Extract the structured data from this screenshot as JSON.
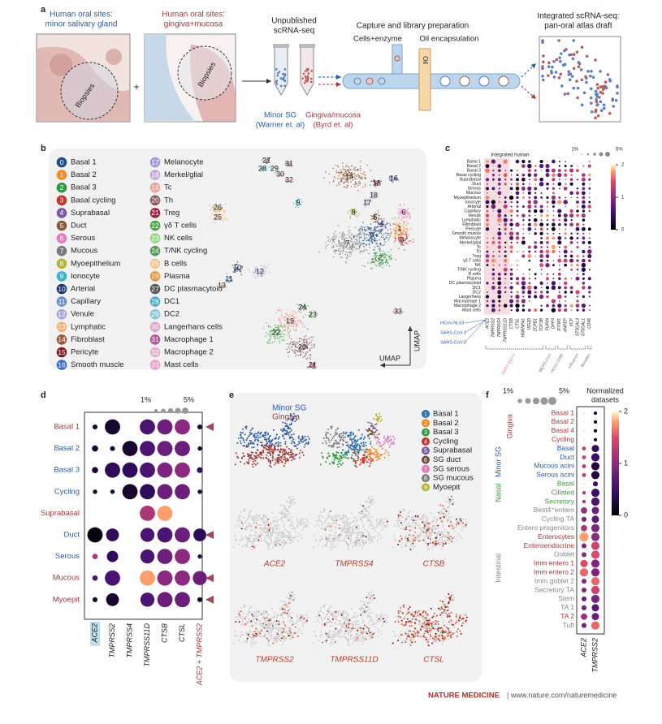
{
  "panel_a": {
    "label": "a",
    "minor_sg_title": [
      "Human oral sites:",
      "minor salivary gland"
    ],
    "gingiva_title": [
      "Human oral sites:",
      "gingiva+mucosa"
    ],
    "biopsies": [
      "Biopsies",
      "Biopsies"
    ],
    "plus": "+",
    "unpublished": [
      "Unpublished",
      "scRNA-seq"
    ],
    "minor_sg_source": [
      "Minor SG",
      "(Warner et. al)"
    ],
    "gingiva_source": [
      "Gingiva/mucosa",
      "(Byrd et. al)"
    ],
    "capture": "Capture and library preparation",
    "cells": "Cells+enzyme",
    "oil_encapsulation": "Oil encapsulation",
    "oil": "Oil",
    "integrated": [
      "Integrated scRNA-seq:",
      "pan-oral atlas draft"
    ]
  },
  "panel_b": {
    "label": "b",
    "umap": [
      "UMAP",
      "UMAP"
    ],
    "clusters": [
      {
        "id": 0,
        "name": "Basal 1",
        "color": "#1f4e8c"
      },
      {
        "id": 1,
        "name": "Basal 2",
        "color": "#f08a24"
      },
      {
        "id": 2,
        "name": "Basal 3",
        "color": "#2e9a3e"
      },
      {
        "id": 3,
        "name": "Basal cycling",
        "color": "#c8322b"
      },
      {
        "id": 4,
        "name": "Suprabasal",
        "color": "#7d5aa6"
      },
      {
        "id": 5,
        "name": "Duct",
        "color": "#8b5a3c"
      },
      {
        "id": 6,
        "name": "Serous",
        "color": "#e37bbd"
      },
      {
        "id": 7,
        "name": "Mucous",
        "color": "#7a7a7a"
      },
      {
        "id": 8,
        "name": "Myoepithelium",
        "color": "#b5b532"
      },
      {
        "id": 9,
        "name": "Ionocyte",
        "color": "#3ab6c8"
      },
      {
        "id": 10,
        "name": "Arterial",
        "color": "#1a3a6e"
      },
      {
        "id": 11,
        "name": "Capillary",
        "color": "#6b8fc8"
      },
      {
        "id": 12,
        "name": "Venule",
        "color": "#a8a8d8"
      },
      {
        "id": 13,
        "name": "Lymphatic",
        "color": "#f2b278"
      },
      {
        "id": 14,
        "name": "Fibroblast",
        "color": "#9a5a3a"
      },
      {
        "id": 15,
        "name": "Pericyte",
        "color": "#7a1f2a"
      },
      {
        "id": 16,
        "name": "Smooth muscle",
        "color": "#3a6ec8"
      },
      {
        "id": 17,
        "name": "Melanocyte",
        "color": "#a89ad8"
      },
      {
        "id": 18,
        "name": "Merkel/glial",
        "color": "#c8a8d8"
      },
      {
        "id": 19,
        "name": "Tc",
        "color": "#f0a098"
      },
      {
        "id": 20,
        "name": "Th",
        "color": "#8a5a5a"
      },
      {
        "id": 21,
        "name": "Treg",
        "color": "#a0283c"
      },
      {
        "id": 22,
        "name": "γδ T cells",
        "color": "#4aa84a"
      },
      {
        "id": 23,
        "name": "NK cells",
        "color": "#9ad88a"
      },
      {
        "id": 24,
        "name": "T/NK cycling",
        "color": "#5a9a5a"
      },
      {
        "id": 25,
        "name": "B cells",
        "color": "#f5c48a"
      },
      {
        "id": 26,
        "name": "Plasma",
        "color": "#e89a3a"
      },
      {
        "id": 27,
        "name": "DC plasmacytoid",
        "color": "#5a5a5a"
      },
      {
        "id": 28,
        "name": "DC1",
        "color": "#4ab0c8"
      },
      {
        "id": 29,
        "name": "DC2",
        "color": "#8ac8d8"
      },
      {
        "id": 30,
        "name": "Langerhans cells",
        "color": "#d8a8c8"
      },
      {
        "id": 31,
        "name": "Macrophage 1",
        "color": "#b05a9a"
      },
      {
        "id": 32,
        "name": "Macrophage 2",
        "color": "#e8b0d0"
      },
      {
        "id": 33,
        "name": "Mast cells",
        "color": "#f0a0c8"
      }
    ]
  },
  "panel_c": {
    "label": "c",
    "title": "Integrated human",
    "size_legend": [
      "1%",
      "5%"
    ],
    "colorbar_ticks": [
      0,
      1,
      2
    ],
    "rows": [
      "Basal 1",
      "Basal 2",
      "Basal 3",
      "Basal cycling",
      "Suprabasal",
      "Duct",
      "Serous",
      "Mucous",
      "Myoepithelium",
      "Ionocyte",
      "Arterial",
      "Capillary",
      "Venule",
      "Lymphatic",
      "Fibroblast",
      "Pericyte",
      "Smooth muscle",
      "Melanocyte",
      "Merkel/glial",
      "Tc",
      "Th",
      "Treg",
      "γδ T cells",
      "NK",
      "T/NK cycling",
      "B cells",
      "Plasma",
      "DC plasmacytoid",
      "DC1",
      "DC2",
      "Langerhans",
      "Macrophage 1",
      "Macrophage 2",
      "Mast cells"
    ],
    "genes": [
      "ACE2",
      "TMPRSS2",
      "TMPRSS4",
      "TMPRSS11D",
      "CTSB",
      "CTSL",
      "HNRNPA1",
      "ISG20",
      "ZCRB1",
      "TOP3B",
      "FURIN",
      "DPP4",
      "IFITM1",
      "ANPEP",
      "VCP",
      "ST3GAL4",
      "ST6GAL1",
      "CD46"
    ],
    "receptor_labels": [
      "HCoV-NL63",
      "SARS-CoV-1",
      "SARS-CoV-2"
    ],
    "virus_groups": [
      {
        "name": "SARS-CoV-2",
        "color": "#d47a8a"
      },
      {
        "name": "MERS-CoV",
        "color": "#777777"
      },
      {
        "name": "HCoV-229E",
        "color": "#777777"
      },
      {
        "name": "Influenza",
        "color": "#777777"
      },
      {
        "name": "Measles",
        "color": "#777777"
      }
    ]
  },
  "panel_d": {
    "label": "d",
    "size_legend": [
      "1%",
      "5%"
    ],
    "columns": [
      "ACE2",
      "TMPRSS2",
      "TMPRSS4",
      "TMPRSS11D",
      "CTSB",
      "CTSL",
      "ACE2 + TMPRSS2"
    ],
    "rows": [
      {
        "name": "Basal 1",
        "color": "#a33a3a",
        "pct": [
          0.3,
          6,
          0,
          6,
          6,
          6,
          0.3
        ],
        "expr": [
          0.1,
          0.1,
          0,
          0.3,
          0.4,
          0.5,
          0.1
        ]
      },
      {
        "name": "Basal 2",
        "color": "#2a5aa8",
        "pct": [
          0.6,
          0.3,
          6,
          6,
          6,
          6,
          0.2
        ],
        "expr": [
          0.1,
          0.1,
          0.1,
          0.3,
          0.4,
          0.4,
          0.1
        ]
      },
      {
        "name": "Basal 3",
        "color": "#2a5aa8",
        "pct": [
          0.6,
          6,
          6,
          6,
          6,
          6,
          0.5
        ],
        "expr": [
          0.1,
          0.2,
          0.2,
          0.3,
          0.45,
          0.5,
          0.2
        ]
      },
      {
        "name": "Cycling",
        "color": "#2a5aa8",
        "pct": [
          0.2,
          0.2,
          6,
          6,
          6,
          6,
          0.2
        ],
        "expr": [
          0.1,
          0.1,
          0.1,
          0.2,
          0.4,
          0.4,
          0.1
        ]
      },
      {
        "name": "Suprabasal",
        "color": "#a33a3a",
        "pct": [
          0,
          0,
          0,
          6,
          6,
          0,
          0
        ],
        "expr": [
          0,
          0,
          0,
          0.6,
          0.9,
          0,
          0
        ]
      },
      {
        "name": "Duct",
        "color": "#2a5aa8",
        "pct": [
          6,
          4,
          0,
          5,
          6,
          6,
          4
        ],
        "expr": [
          0.02,
          0.2,
          0,
          0.3,
          0.3,
          0.4,
          0.2
        ]
      },
      {
        "name": "Serous",
        "color": "#2a5aa8",
        "pct": [
          0.4,
          3,
          0,
          5,
          6,
          6,
          0.2
        ],
        "expr": [
          0.6,
          0.2,
          0,
          0.3,
          0.4,
          0.5,
          0.2
        ]
      },
      {
        "name": "Mucous",
        "color": "#a33a3a",
        "pct": [
          0.4,
          6,
          0,
          6,
          6,
          6,
          5
        ],
        "expr": [
          0.3,
          0.3,
          0,
          0.9,
          0.5,
          0.5,
          0.4
        ]
      },
      {
        "name": "Myoepit",
        "color": "#a33a3a",
        "pct": [
          0.3,
          4,
          0,
          5,
          6,
          6,
          0.3
        ],
        "expr": [
          0.1,
          0.1,
          0,
          0.3,
          0.4,
          0.4,
          0.1
        ]
      }
    ]
  },
  "panel_e": {
    "label": "e",
    "overlay_legend": [
      {
        "name": "Minor SG",
        "color": "#2a5aa8"
      },
      {
        "name": "Gingiva",
        "color": "#a33a3a"
      }
    ],
    "clusters": [
      {
        "id": 1,
        "name": "Basal 1",
        "color": "#2a6fb5"
      },
      {
        "id": 2,
        "name": "Basal 2",
        "color": "#f08a24"
      },
      {
        "id": 3,
        "name": "Basal 3",
        "color": "#2e9a3e"
      },
      {
        "id": 4,
        "name": "Cycling",
        "color": "#c8322b"
      },
      {
        "id": 5,
        "name": "Suprabasal",
        "color": "#7d5aa6"
      },
      {
        "id": 6,
        "name": "SG duct",
        "color": "#6a4a3a"
      },
      {
        "id": 7,
        "name": "SG serous",
        "color": "#e37bbd"
      },
      {
        "id": 8,
        "name": "SG mucous",
        "color": "#7a7a7a"
      },
      {
        "id": 9,
        "name": "Myoepit",
        "color": "#b5b532"
      }
    ],
    "genes": [
      "ACE2",
      "TMPRSS4",
      "CTSB",
      "TMPRSS2",
      "TMPRSS11D",
      "CTSL"
    ]
  },
  "panel_f": {
    "label": "f",
    "size_legend": [
      "1%",
      "5%"
    ],
    "colorbar_title": [
      "Normalized",
      "datasets"
    ],
    "colorbar_ticks": [
      0,
      1,
      2
    ],
    "columns": [
      "ACE2",
      "TMPRSS2"
    ],
    "groups": [
      {
        "name": "Gingiva",
        "color": "#a33a3a",
        "rows": [
          {
            "name": "Basal 1",
            "color": "#a33a3a",
            "pct": [
              0,
              0.3
            ],
            "expr": [
              0,
              0.2
            ]
          },
          {
            "name": "Basal 2",
            "color": "#a33a3a",
            "pct": [
              0,
              0.3
            ],
            "expr": [
              0,
              0.2
            ]
          },
          {
            "name": "Basal 4",
            "color": "#a33a3a",
            "pct": [
              0,
              0.3
            ],
            "expr": [
              0,
              0.2
            ]
          },
          {
            "name": "Cycling",
            "color": "#a33a3a",
            "pct": [
              0,
              0.3
            ],
            "expr": [
              0,
              0.2
            ]
          }
        ]
      },
      {
        "name": "Minor SG",
        "color": "#2a5aa8",
        "rows": [
          {
            "name": "Basal",
            "color": "#2a5aa8",
            "pct": [
              0.5,
              3
            ],
            "expr": [
              1.4,
              0.4
            ]
          },
          {
            "name": "Duct",
            "color": "#2a5aa8",
            "pct": [
              0.5,
              4
            ],
            "expr": [
              1.4,
              0.5
            ]
          },
          {
            "name": "Mucous acini",
            "color": "#2a5aa8",
            "pct": [
              0.5,
              4
            ],
            "expr": [
              1.3,
              0.3
            ]
          },
          {
            "name": "Serous acini",
            "color": "#2a5aa8",
            "pct": [
              0.5,
              4
            ],
            "expr": [
              1.3,
              0.3
            ]
          }
        ]
      },
      {
        "name": "Nasal",
        "color": "#3a9a3a",
        "rows": [
          {
            "name": "Basal",
            "color": "#3a9a3a",
            "pct": [
              0,
              1
            ],
            "expr": [
              0,
              0.5
            ]
          },
          {
            "name": "Ciliated",
            "color": "#3a9a3a",
            "pct": [
              0.3,
              4
            ],
            "expr": [
              1.2,
              0.5
            ]
          },
          {
            "name": "Secretory",
            "color": "#3a9a3a",
            "pct": [
              0.3,
              4
            ],
            "expr": [
              1.2,
              0.6
            ]
          }
        ]
      },
      {
        "name": "Intestinal",
        "color": "#888888",
        "rows": [
          {
            "name": "Best4⁺entero",
            "color": "#888888",
            "pct": [
              2,
              3
            ],
            "expr": [
              1.1,
              0.8
            ]
          },
          {
            "name": "Cycling TA",
            "color": "#888888",
            "pct": [
              1,
              3
            ],
            "expr": [
              0.9,
              0.7
            ]
          },
          {
            "name": "Entero progenitors",
            "color": "#888888",
            "pct": [
              2,
              4
            ],
            "expr": [
              1.2,
              0.9
            ]
          },
          {
            "name": "Enterocytes",
            "color": "#a33a3a",
            "pct": [
              5,
              4
            ],
            "expr": [
              1.8,
              1.0
            ]
          },
          {
            "name": "Enteroendocrine",
            "color": "#a33a3a",
            "pct": [
              1,
              4
            ],
            "expr": [
              0.9,
              1.4
            ]
          },
          {
            "name": "Goblet",
            "color": "#888888",
            "pct": [
              1,
              4
            ],
            "expr": [
              1.0,
              1.5
            ]
          },
          {
            "name": "Imm entero 1",
            "color": "#a33a3a",
            "pct": [
              3,
              4
            ],
            "expr": [
              1.5,
              0.9
            ]
          },
          {
            "name": "Imm entero 2",
            "color": "#a33a3a",
            "pct": [
              4,
              4
            ],
            "expr": [
              1.6,
              0.9
            ]
          },
          {
            "name": "Imm goblet 2",
            "color": "#888888",
            "pct": [
              1,
              4
            ],
            "expr": [
              1.0,
              1.6
            ]
          },
          {
            "name": "Secretory TA",
            "color": "#888888",
            "pct": [
              1,
              4
            ],
            "expr": [
              0.9,
              1.4
            ]
          },
          {
            "name": "Stem",
            "color": "#888888",
            "pct": [
              1,
              4
            ],
            "expr": [
              0.8,
              0.9
            ]
          },
          {
            "name": "TA 1",
            "color": "#888888",
            "pct": [
              1,
              3
            ],
            "expr": [
              0.8,
              0.7
            ]
          },
          {
            "name": "TA 2",
            "color": "#a33a3a",
            "pct": [
              2,
              3
            ],
            "expr": [
              1.1,
              0.8
            ]
          },
          {
            "name": "Tuft",
            "color": "#888888",
            "pct": [
              1,
              4
            ],
            "expr": [
              0.8,
              1.6
            ]
          }
        ]
      }
    ]
  },
  "footer": {
    "journal": "NATURE MEDICINE",
    "url": "| www.nature.com/naturemedicine"
  }
}
